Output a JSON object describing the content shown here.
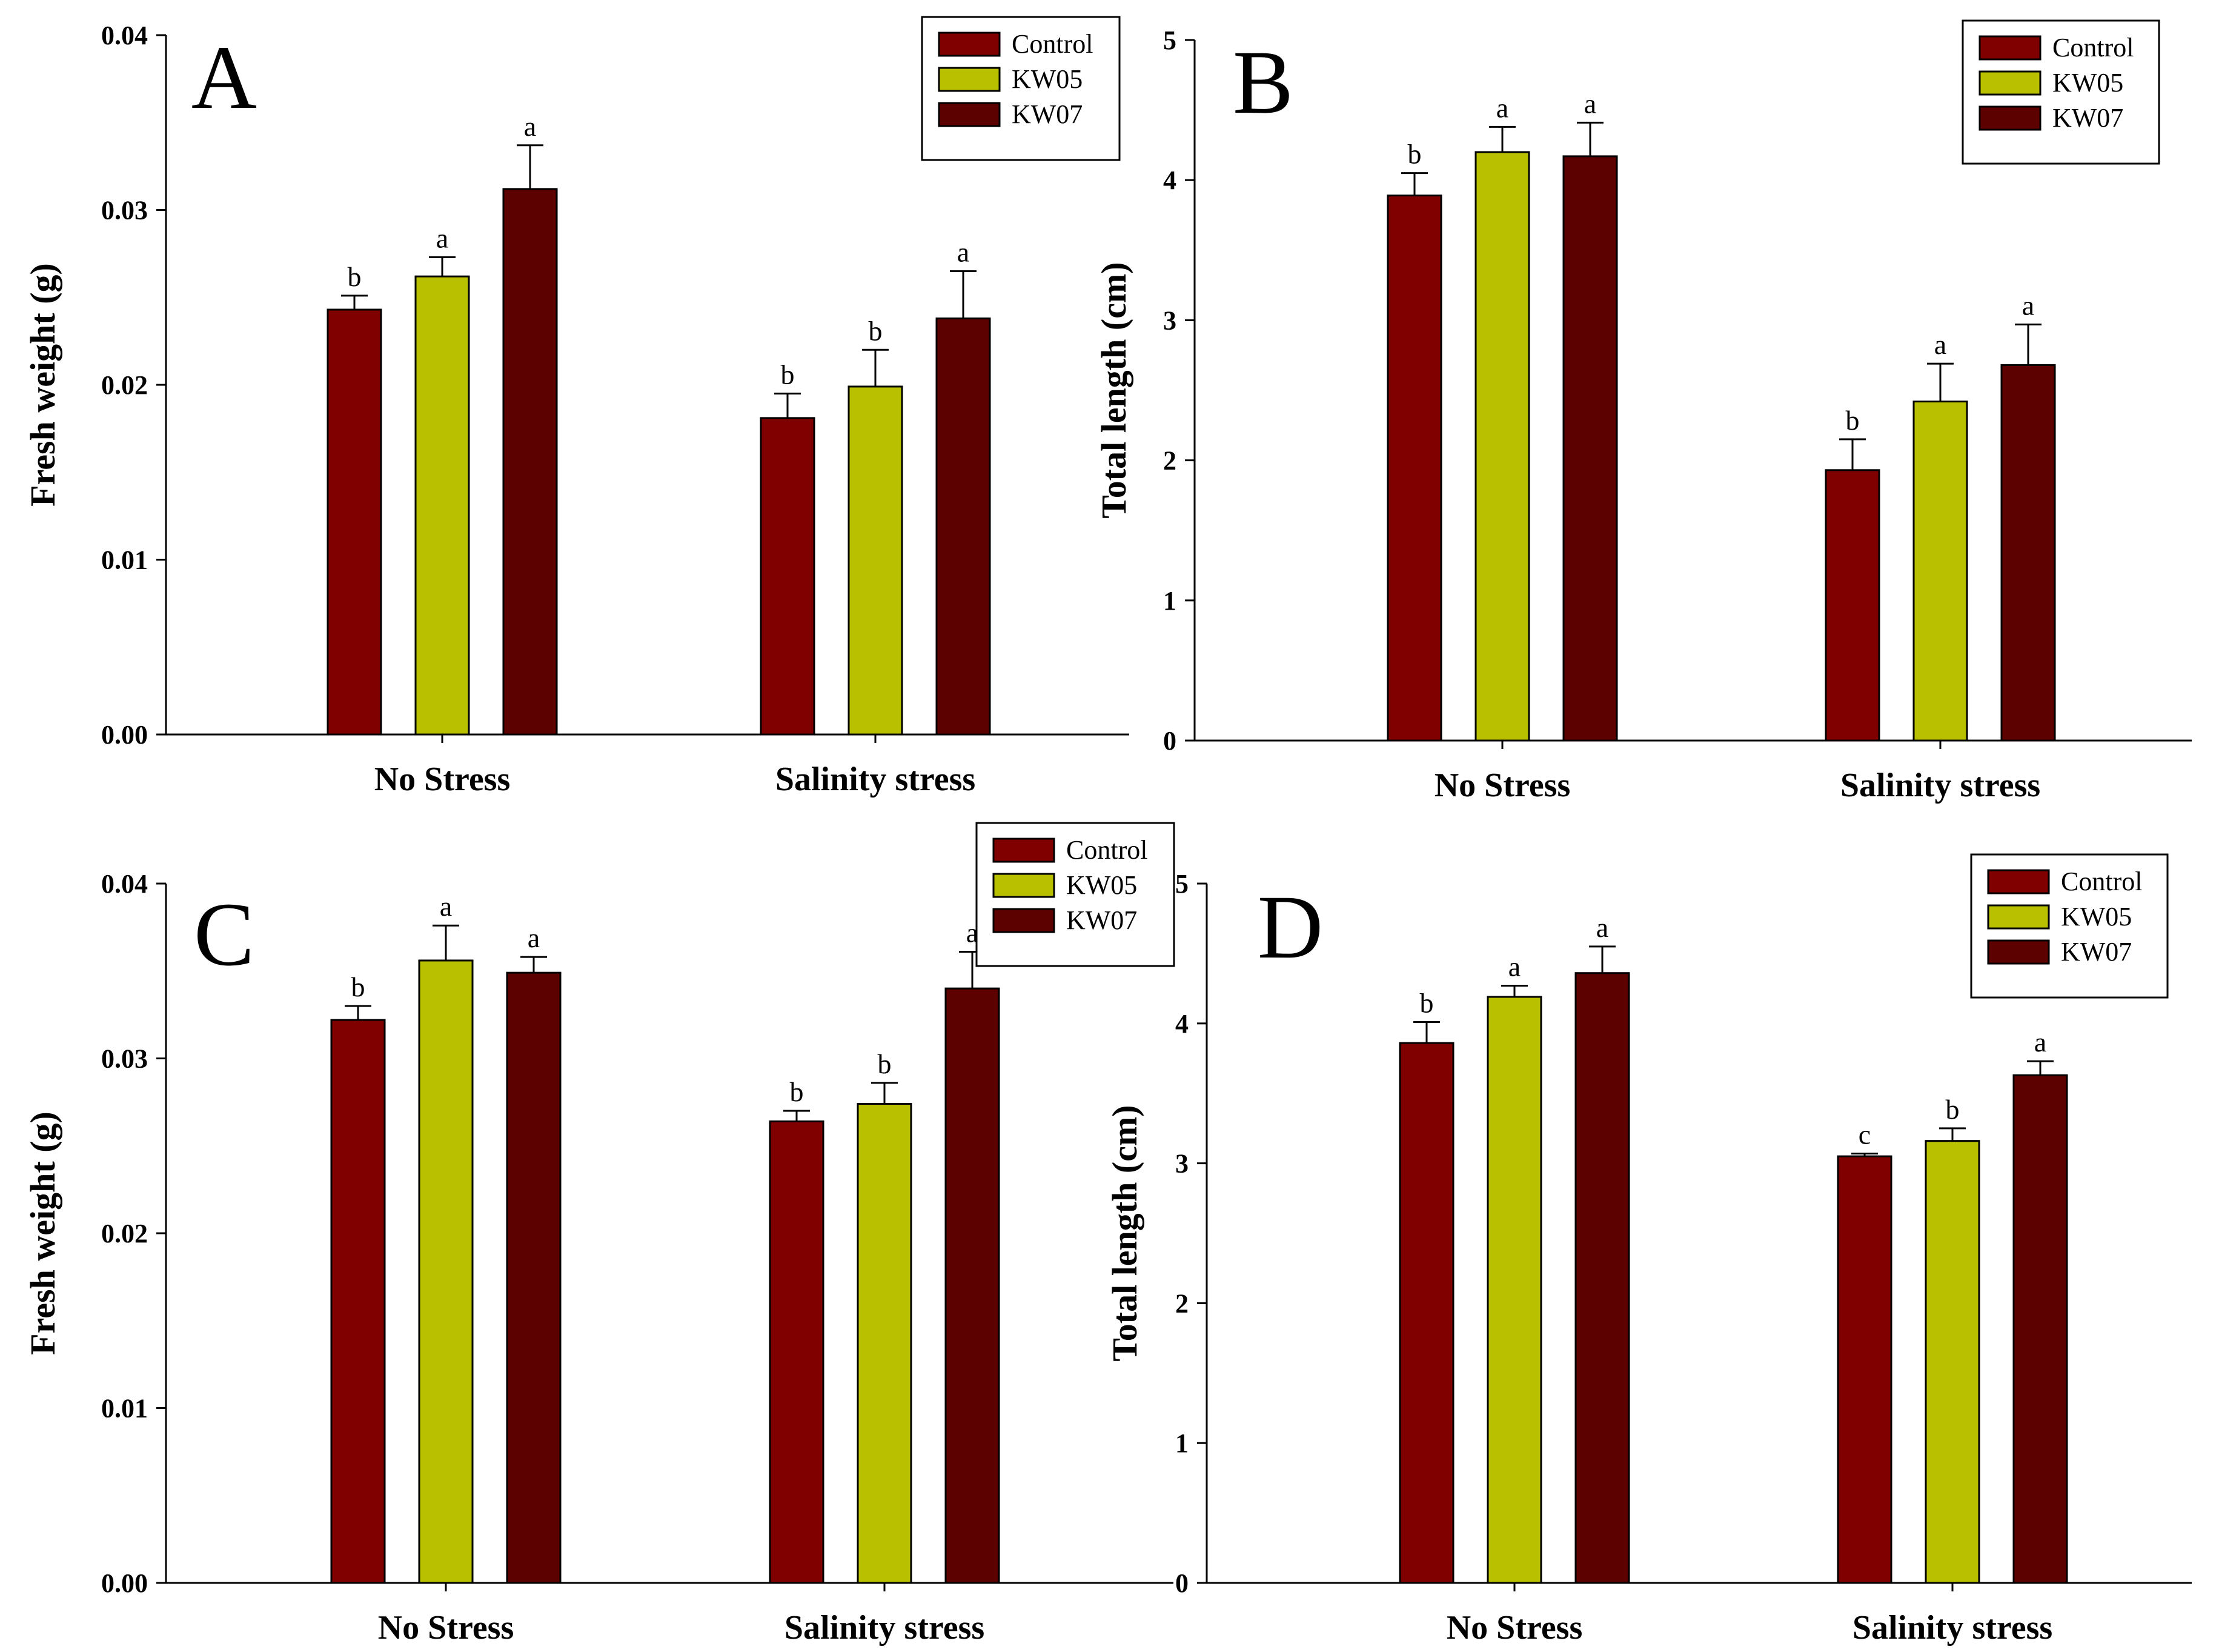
{
  "colors": {
    "Control": "#800000",
    "KW05": "#b8c000",
    "KW07": "#5c0000"
  },
  "legend_labels": [
    "Control",
    "KW05",
    "KW07"
  ],
  "chart_data": [
    {
      "panel": "A",
      "type": "bar",
      "ylabel": "Fresh weight (g)",
      "ylim": [
        0,
        0.04
      ],
      "yticks": [
        "0.00",
        "0.01",
        "0.02",
        "0.03",
        "0.04"
      ],
      "categories": [
        "No Stress",
        "Salinity stress"
      ],
      "series": [
        {
          "name": "Control",
          "values": [
            0.0243,
            0.0181
          ],
          "errors": [
            0.0008,
            0.0014
          ],
          "letters": [
            "b",
            "b"
          ]
        },
        {
          "name": "KW05",
          "values": [
            0.0262,
            0.0199
          ],
          "errors": [
            0.0011,
            0.0021
          ],
          "letters": [
            "a",
            "b"
          ]
        },
        {
          "name": "KW07",
          "values": [
            0.0312,
            0.0238
          ],
          "errors": [
            0.0025,
            0.0027
          ],
          "letters": [
            "a",
            "a"
          ]
        }
      ]
    },
    {
      "panel": "B",
      "type": "bar",
      "ylabel": "Total length (cm)",
      "ylim": [
        0,
        5
      ],
      "yticks": [
        "0",
        "1",
        "2",
        "3",
        "4",
        "5"
      ],
      "categories": [
        "No Stress",
        "Salinity stress"
      ],
      "series": [
        {
          "name": "Control",
          "values": [
            3.89,
            1.93
          ],
          "errors": [
            0.16,
            0.22
          ],
          "letters": [
            "b",
            "b"
          ]
        },
        {
          "name": "KW05",
          "values": [
            4.2,
            2.42
          ],
          "errors": [
            0.18,
            0.27
          ],
          "letters": [
            "a",
            "a"
          ]
        },
        {
          "name": "KW07",
          "values": [
            4.17,
            2.68
          ],
          "errors": [
            0.24,
            0.29
          ],
          "letters": [
            "a",
            "a"
          ]
        }
      ]
    },
    {
      "panel": "C",
      "type": "bar",
      "ylabel": "Fresh weight (g)",
      "ylim": [
        0,
        0.04
      ],
      "yticks": [
        "0.00",
        "0.01",
        "0.02",
        "0.03",
        "0.04"
      ],
      "categories": [
        "No Stress",
        "Salinity stress"
      ],
      "series": [
        {
          "name": "Control",
          "values": [
            0.0322,
            0.0264
          ],
          "errors": [
            0.0008,
            0.0006
          ],
          "letters": [
            "b",
            "b"
          ]
        },
        {
          "name": "KW05",
          "values": [
            0.0356,
            0.0274
          ],
          "errors": [
            0.002,
            0.0012
          ],
          "letters": [
            "a",
            "b"
          ]
        },
        {
          "name": "KW07",
          "values": [
            0.0349,
            0.034
          ],
          "errors": [
            0.0009,
            0.0021
          ],
          "letters": [
            "a",
            "a"
          ]
        }
      ]
    },
    {
      "panel": "D",
      "type": "bar",
      "ylabel": "Total length (cm)",
      "ylim": [
        0,
        5
      ],
      "yticks": [
        "0",
        "1",
        "2",
        "3",
        "4",
        "5"
      ],
      "categories": [
        "No Stress",
        "Salinity stress"
      ],
      "series": [
        {
          "name": "Control",
          "values": [
            3.86,
            3.05
          ],
          "errors": [
            0.15,
            0.02
          ],
          "letters": [
            "b",
            "c"
          ]
        },
        {
          "name": "KW05",
          "values": [
            4.19,
            3.16
          ],
          "errors": [
            0.08,
            0.09
          ],
          "letters": [
            "a",
            "b"
          ]
        },
        {
          "name": "KW07",
          "values": [
            4.36,
            3.63
          ],
          "errors": [
            0.19,
            0.1
          ],
          "letters": [
            "a",
            "a"
          ]
        }
      ]
    }
  ]
}
